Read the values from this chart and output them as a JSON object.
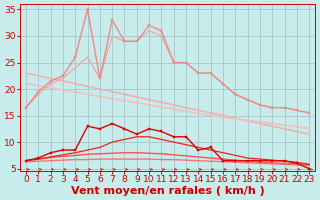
{
  "bg_color": "#c8ecec",
  "grid_color": "#a8cccc",
  "xlabel": "Vent moyen/en rafales ( km/h )",
  "xlim": [
    -0.5,
    23.5
  ],
  "ylim": [
    4.5,
    36
  ],
  "yticks": [
    5,
    10,
    15,
    20,
    25,
    30,
    35
  ],
  "xticks": [
    0,
    1,
    2,
    3,
    4,
    5,
    6,
    7,
    8,
    9,
    10,
    11,
    12,
    13,
    14,
    15,
    16,
    17,
    18,
    19,
    20,
    21,
    22,
    23
  ],
  "lines": [
    {
      "x": [
        0,
        1,
        2,
        3,
        4,
        5,
        6,
        7,
        8,
        9,
        10,
        11,
        12,
        13,
        14,
        15,
        16,
        17,
        18,
        19,
        20,
        21,
        22,
        23
      ],
      "y": [
        16.5,
        19.5,
        21.5,
        22.5,
        26,
        35,
        22,
        33,
        29,
        29,
        32,
        31,
        25,
        25,
        23,
        23,
        21,
        19,
        18,
        17,
        16.5,
        16.5,
        16,
        15.5
      ],
      "color": "#f08888",
      "lw": 1.0,
      "marker": "s",
      "ms": 2.0,
      "zorder": 4
    },
    {
      "x": [
        0,
        1,
        2,
        3,
        4,
        5,
        6,
        7,
        8,
        9,
        10,
        11,
        12,
        13,
        14,
        15,
        16,
        17,
        18,
        19,
        20,
        21,
        22,
        23
      ],
      "y": [
        16.5,
        19,
        21,
        22,
        24,
        26,
        22,
        30,
        29,
        29,
        31,
        30,
        25,
        25,
        23,
        23,
        21,
        19,
        18,
        17,
        16.5,
        16.5,
        16,
        15.5
      ],
      "color": "#f0a0a0",
      "lw": 0.8,
      "marker": null,
      "ms": 0,
      "zorder": 3
    },
    {
      "x": [
        0,
        1,
        2,
        3,
        4,
        5,
        6,
        7,
        8,
        9,
        10,
        11,
        12,
        13,
        14,
        15,
        16,
        17,
        18,
        19,
        20,
        21,
        22,
        23
      ],
      "y": [
        23.0,
        22.5,
        22.0,
        21.5,
        21.0,
        20.5,
        20.0,
        19.5,
        19.0,
        18.5,
        18.0,
        17.5,
        17.0,
        16.5,
        16.0,
        15.5,
        15.0,
        14.5,
        14.0,
        13.5,
        13.0,
        12.5,
        12.0,
        11.5
      ],
      "color": "#f0b0b0",
      "lw": 1.2,
      "marker": null,
      "ms": 0,
      "zorder": 2
    },
    {
      "x": [
        0,
        1,
        2,
        3,
        4,
        5,
        6,
        7,
        8,
        9,
        10,
        11,
        12,
        13,
        14,
        15,
        16,
        17,
        18,
        19,
        20,
        21,
        22,
        23
      ],
      "y": [
        21.0,
        20.6,
        20.2,
        19.8,
        19.4,
        19.0,
        18.6,
        18.2,
        17.8,
        17.4,
        17.0,
        16.6,
        16.2,
        15.8,
        15.4,
        15.0,
        14.7,
        14.4,
        14.1,
        13.8,
        13.5,
        13.2,
        12.9,
        12.6
      ],
      "color": "#f0c0c0",
      "lw": 1.2,
      "marker": null,
      "ms": 0,
      "zorder": 2
    },
    {
      "x": [
        0,
        1,
        2,
        3,
        4,
        5,
        6,
        7,
        8,
        9,
        10,
        11,
        12,
        13,
        14,
        15,
        16,
        17,
        18,
        19,
        20,
        21,
        22,
        23
      ],
      "y": [
        6.5,
        7.0,
        8.0,
        8.5,
        8.5,
        13.0,
        12.5,
        13.5,
        12.5,
        11.5,
        12.5,
        12.0,
        11.0,
        11.0,
        8.5,
        9.0,
        6.5,
        6.5,
        6.5,
        6.5,
        6.5,
        6.5,
        6.0,
        5.0
      ],
      "color": "#dd0000",
      "lw": 1.0,
      "marker": "s",
      "ms": 2.0,
      "zorder": 4
    },
    {
      "x": [
        0,
        1,
        2,
        3,
        4,
        5,
        6,
        7,
        8,
        9,
        10,
        11,
        12,
        13,
        14,
        15,
        16,
        17,
        18,
        19,
        20,
        21,
        22,
        23
      ],
      "y": [
        6.5,
        6.8,
        7.2,
        7.6,
        8.0,
        8.5,
        9.0,
        10.0,
        10.5,
        11.0,
        11.0,
        10.5,
        10.0,
        9.5,
        9.0,
        8.5,
        8.0,
        7.5,
        7.0,
        6.8,
        6.6,
        6.4,
        6.2,
        5.8
      ],
      "color": "#ee2020",
      "lw": 0.9,
      "marker": null,
      "ms": 0,
      "zorder": 3
    },
    {
      "x": [
        0,
        1,
        2,
        3,
        4,
        5,
        6,
        7,
        8,
        9,
        10,
        11,
        12,
        13,
        14,
        15,
        16,
        17,
        18,
        19,
        20,
        21,
        22,
        23
      ],
      "y": [
        6.5,
        6.8,
        7.1,
        7.3,
        7.5,
        7.7,
        7.8,
        7.9,
        8.0,
        8.0,
        7.9,
        7.8,
        7.6,
        7.4,
        7.2,
        7.0,
        6.8,
        6.6,
        6.4,
        6.2,
        6.1,
        6.0,
        5.9,
        5.8
      ],
      "color": "#ff5050",
      "lw": 1.0,
      "marker": null,
      "ms": 0,
      "zorder": 2
    },
    {
      "x": [
        0,
        1,
        2,
        3,
        4,
        5,
        6,
        7,
        8,
        9,
        10,
        11,
        12,
        13,
        14,
        15,
        16,
        17,
        18,
        19,
        20,
        21,
        22,
        23
      ],
      "y": [
        6.3,
        6.4,
        6.5,
        6.6,
        6.7,
        6.7,
        6.8,
        6.8,
        6.8,
        6.8,
        6.8,
        6.7,
        6.7,
        6.6,
        6.5,
        6.4,
        6.3,
        6.2,
        6.1,
        6.0,
        5.9,
        5.8,
        5.7,
        5.6
      ],
      "color": "#ff7070",
      "lw": 1.0,
      "marker": null,
      "ms": 0,
      "zorder": 2
    }
  ],
  "arrow_color": "#cc2020",
  "xlabel_color": "#cc0000",
  "xlabel_fontsize": 8,
  "tick_color": "#cc0000",
  "tick_fontsize": 6.5
}
